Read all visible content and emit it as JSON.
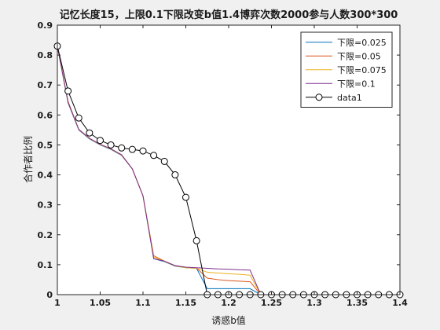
{
  "chart_data": {
    "type": "line",
    "title": "记忆长度15，上限0.1下限改变b值1.4博弈次数2000参与人数300*300",
    "xlabel": "诱惑b值",
    "ylabel": "合作者比例",
    "xlim": [
      1,
      1.4
    ],
    "ylim": [
      0,
      0.9
    ],
    "xticks": [
      1,
      1.05,
      1.1,
      1.15,
      1.2,
      1.25,
      1.3,
      1.35,
      1.4
    ],
    "xtick_labels": [
      "1",
      "1.05",
      "1.1",
      "1.15",
      "1.2",
      "1.25",
      "1.3",
      "1.35",
      "1.4"
    ],
    "yticks": [
      0,
      0.1,
      0.2,
      0.3,
      0.4,
      0.5,
      0.6,
      0.7,
      0.8,
      0.9
    ],
    "ytick_labels": [
      "0",
      "0.1",
      "0.2",
      "0.3",
      "0.4",
      "0.5",
      "0.6",
      "0.7",
      "0.8",
      "0.9"
    ],
    "grid": false,
    "legend_position": "top-right",
    "x": [
      1.0,
      1.0125,
      1.025,
      1.0375,
      1.05,
      1.0625,
      1.075,
      1.0875,
      1.1,
      1.1125,
      1.125,
      1.1375,
      1.15,
      1.1625,
      1.175,
      1.1875,
      1.2,
      1.2125,
      1.225,
      1.2375,
      1.25,
      1.2625,
      1.275,
      1.2875,
      1.3,
      1.3125,
      1.325,
      1.3375,
      1.35,
      1.3625,
      1.375,
      1.3875,
      1.4
    ],
    "series": [
      {
        "name": "下限=0.025",
        "color": "#0072bd",
        "marker": "none",
        "values": [
          0.83,
          0.64,
          0.55,
          0.52,
          0.5,
          0.485,
          0.465,
          0.42,
          0.33,
          0.12,
          0.11,
          0.095,
          0.09,
          0.088,
          0.02,
          0.02,
          0.02,
          0.02,
          0.02,
          0.0,
          0.0,
          0.0,
          0.0,
          0.0,
          0.0,
          0.0,
          0.0,
          0.0,
          0.0,
          0.0,
          0.0,
          0.0,
          0.0
        ]
      },
      {
        "name": "下限=0.05",
        "color": "#d95319",
        "marker": "none",
        "values": [
          0.83,
          0.645,
          0.552,
          0.522,
          0.502,
          0.487,
          0.467,
          0.42,
          0.33,
          0.13,
          0.112,
          0.097,
          0.091,
          0.089,
          0.055,
          0.05,
          0.047,
          0.045,
          0.043,
          0.0,
          0.0,
          0.0,
          0.0,
          0.0,
          0.0,
          0.0,
          0.0,
          0.0,
          0.0,
          0.0,
          0.0,
          0.0,
          0.0
        ]
      },
      {
        "name": "下限=0.075",
        "color": "#edb120",
        "marker": "none",
        "values": [
          0.83,
          0.642,
          0.551,
          0.521,
          0.501,
          0.486,
          0.466,
          0.42,
          0.33,
          0.125,
          0.111,
          0.096,
          0.09,
          0.088,
          0.075,
          0.072,
          0.07,
          0.068,
          0.065,
          0.0,
          0.0,
          0.0,
          0.0,
          0.0,
          0.0,
          0.0,
          0.0,
          0.0,
          0.0,
          0.0,
          0.0,
          0.0,
          0.0
        ]
      },
      {
        "name": "下限=0.1",
        "color": "#7e2f8e",
        "marker": "none",
        "values": [
          0.83,
          0.643,
          0.552,
          0.522,
          0.502,
          0.487,
          0.467,
          0.42,
          0.33,
          0.12,
          0.112,
          0.097,
          0.092,
          0.09,
          0.088,
          0.086,
          0.085,
          0.083,
          0.082,
          0.0,
          0.0,
          0.0,
          0.0,
          0.0,
          0.0,
          0.0,
          0.0,
          0.0,
          0.0,
          0.0,
          0.0,
          0.0,
          0.0
        ]
      },
      {
        "name": "data1",
        "color": "#000000",
        "marker": "circle",
        "values": [
          0.83,
          0.68,
          0.59,
          0.54,
          0.515,
          0.5,
          0.49,
          0.485,
          0.48,
          0.465,
          0.445,
          0.4,
          0.325,
          0.18,
          0.0,
          0.0,
          0.0,
          0.0,
          0.0,
          0.0,
          0.0,
          0.0,
          0.0,
          0.0,
          0.0,
          0.0,
          0.0,
          0.0,
          0.0,
          0.0,
          0.0,
          0.0,
          0.0
        ]
      }
    ]
  }
}
